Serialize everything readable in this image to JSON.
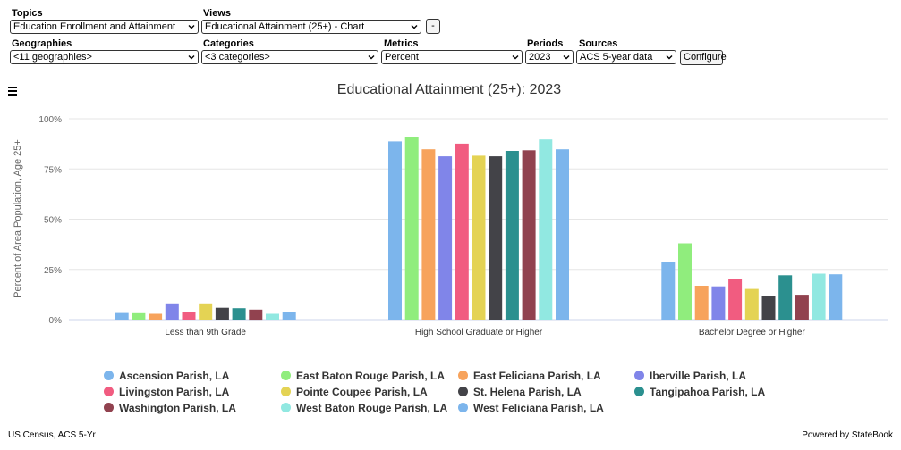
{
  "controls": {
    "topics": {
      "label": "Topics",
      "value": "Education Enrollment and Attainment"
    },
    "views": {
      "label": "Views",
      "value": "Educational Attainment (25+) - Chart"
    },
    "minus_label": "-",
    "geographies": {
      "label": "Geographies",
      "value": "<11 geographies>"
    },
    "categories": {
      "label": "Categories",
      "value": "<3 categories>"
    },
    "metrics": {
      "label": "Metrics",
      "value": "Percent"
    },
    "periods": {
      "label": "Periods",
      "value": "2023"
    },
    "sources": {
      "label": "Sources",
      "value": "ACS 5-year data"
    },
    "configure_label": "Configure"
  },
  "menu_icon": "hamburger-menu-icon",
  "chart_data": {
    "type": "bar",
    "title": "Educational Attainment (25+): 2023",
    "ylabel": "Percent of Area Population, Age 25+",
    "xlabel": "",
    "ylim": [
      0,
      100
    ],
    "yticks": [
      "0%",
      "25%",
      "50%",
      "75%",
      "100%"
    ],
    "ytick_values": [
      0,
      25,
      50,
      75,
      100
    ],
    "grid": true,
    "legend_position": "bottom",
    "categories": [
      "Less than 9th Grade",
      "High School Graduate or Higher",
      "Bachelor Degree or Higher"
    ],
    "series": [
      {
        "name": "Ascension Parish, LA",
        "color": "#7cb5ec",
        "values": [
          3.3,
          88.7,
          28.5
        ]
      },
      {
        "name": "East Baton Rouge Parish, LA",
        "color": "#90ed7d",
        "values": [
          3.2,
          90.7,
          38.0
        ]
      },
      {
        "name": "East Feliciana Parish, LA",
        "color": "#f7a35c",
        "values": [
          2.9,
          84.8,
          16.9
        ]
      },
      {
        "name": "Iberville Parish, LA",
        "color": "#8085e9",
        "values": [
          8.1,
          81.3,
          16.6
        ]
      },
      {
        "name": "Livingston Parish, LA",
        "color": "#f15c80",
        "values": [
          4.0,
          87.6,
          20.0
        ]
      },
      {
        "name": "Pointe Coupee Parish, LA",
        "color": "#e4d354",
        "values": [
          8.1,
          81.6,
          15.3
        ]
      },
      {
        "name": "St. Helena Parish, LA",
        "color": "#434348",
        "values": [
          5.9,
          81.3,
          11.7
        ]
      },
      {
        "name": "Tangipahoa Parish, LA",
        "color": "#2b908f",
        "values": [
          5.7,
          84.0,
          22.1
        ]
      },
      {
        "name": "Washington Parish, LA",
        "color": "#91424f",
        "values": [
          5.0,
          84.3,
          12.4
        ]
      },
      {
        "name": "West Baton Rouge Parish, LA",
        "color": "#91e8e1",
        "values": [
          2.9,
          89.7,
          22.9
        ]
      },
      {
        "name": "West Feliciana Parish, LA",
        "color": "#7cb5ec",
        "values": [
          3.7,
          84.8,
          22.6
        ]
      }
    ]
  },
  "footer": {
    "source": "US Census, ACS 5-Yr",
    "powered_by": "Powered by StateBook"
  }
}
